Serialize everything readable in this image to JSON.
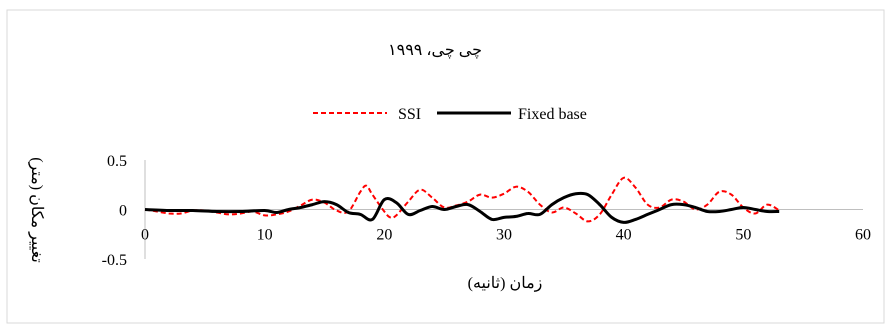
{
  "chart_data": {
    "type": "line",
    "title": "چی چی، ۱۹۹۹",
    "xlabel": "زمان (ثانیه)",
    "ylabel": "تغییر مکان (متر)",
    "xlim": [
      0,
      60
    ],
    "ylim": [
      -0.5,
      0.5
    ],
    "x_ticks": [
      0,
      10,
      20,
      30,
      40,
      50,
      60
    ],
    "y_ticks": [
      {
        "value": 0.5,
        "label": "0.5"
      },
      {
        "value": 0,
        "label": "0"
      },
      {
        "value": -0.5,
        "label": "-0.5"
      }
    ],
    "grid": false,
    "legend_position": "top",
    "series": [
      {
        "name": "SSI",
        "color": "#ff0000",
        "dash": "dashed",
        "x": [
          0,
          1,
          2,
          3,
          4,
          5,
          6,
          7,
          8,
          9,
          10,
          11,
          12,
          13,
          14,
          15,
          16,
          17,
          18,
          18.5,
          19,
          20,
          20.5,
          21,
          22,
          23,
          24,
          25,
          26,
          27,
          28,
          29,
          30,
          31,
          32,
          33,
          34,
          35,
          36,
          37,
          38,
          39,
          40,
          41,
          42,
          43,
          44,
          45,
          46,
          47,
          48,
          49,
          50,
          51,
          52,
          53
        ],
        "y": [
          0,
          -0.02,
          -0.04,
          -0.04,
          -0.01,
          -0.01,
          -0.03,
          -0.05,
          -0.04,
          -0.02,
          -0.06,
          -0.05,
          -0.02,
          0.04,
          0.1,
          0.07,
          -0.01,
          -0.02,
          0.18,
          0.24,
          0.15,
          -0.02,
          -0.08,
          -0.06,
          0.08,
          0.2,
          0.12,
          0.02,
          0.04,
          0.08,
          0.15,
          0.12,
          0.16,
          0.23,
          0.18,
          0.05,
          -0.03,
          0.02,
          -0.04,
          -0.12,
          -0.05,
          0.15,
          0.32,
          0.22,
          0.05,
          0.02,
          0.1,
          0.08,
          0.0,
          0.05,
          0.18,
          0.15,
          0.02,
          -0.04,
          0.05,
          -0.01
        ]
      },
      {
        "name": "Fixed base",
        "color": "#000000",
        "dash": "solid",
        "x": [
          0,
          2,
          4,
          6,
          8,
          10,
          11,
          12,
          13,
          14,
          15,
          16,
          17,
          18,
          19,
          20,
          21,
          22,
          23,
          24,
          25,
          26,
          27,
          28,
          29,
          30,
          31,
          32,
          33,
          34,
          35,
          36,
          37,
          38,
          39,
          40,
          41,
          42,
          43,
          44,
          45,
          46,
          47,
          48,
          49,
          50,
          51,
          52,
          53
        ],
        "y": [
          0,
          -0.01,
          -0.01,
          -0.02,
          -0.02,
          -0.01,
          -0.03,
          0.0,
          0.02,
          0.05,
          0.08,
          0.05,
          -0.03,
          -0.05,
          -0.1,
          0.1,
          0.07,
          -0.05,
          -0.01,
          0.03,
          0.0,
          0.03,
          0.05,
          -0.02,
          -0.1,
          -0.08,
          -0.07,
          -0.04,
          -0.05,
          0.05,
          0.12,
          0.16,
          0.15,
          0.05,
          -0.08,
          -0.13,
          -0.1,
          -0.05,
          0.0,
          0.05,
          0.05,
          0.02,
          -0.02,
          -0.02,
          0.0,
          0.02,
          0.0,
          -0.02,
          -0.02
        ]
      }
    ]
  }
}
